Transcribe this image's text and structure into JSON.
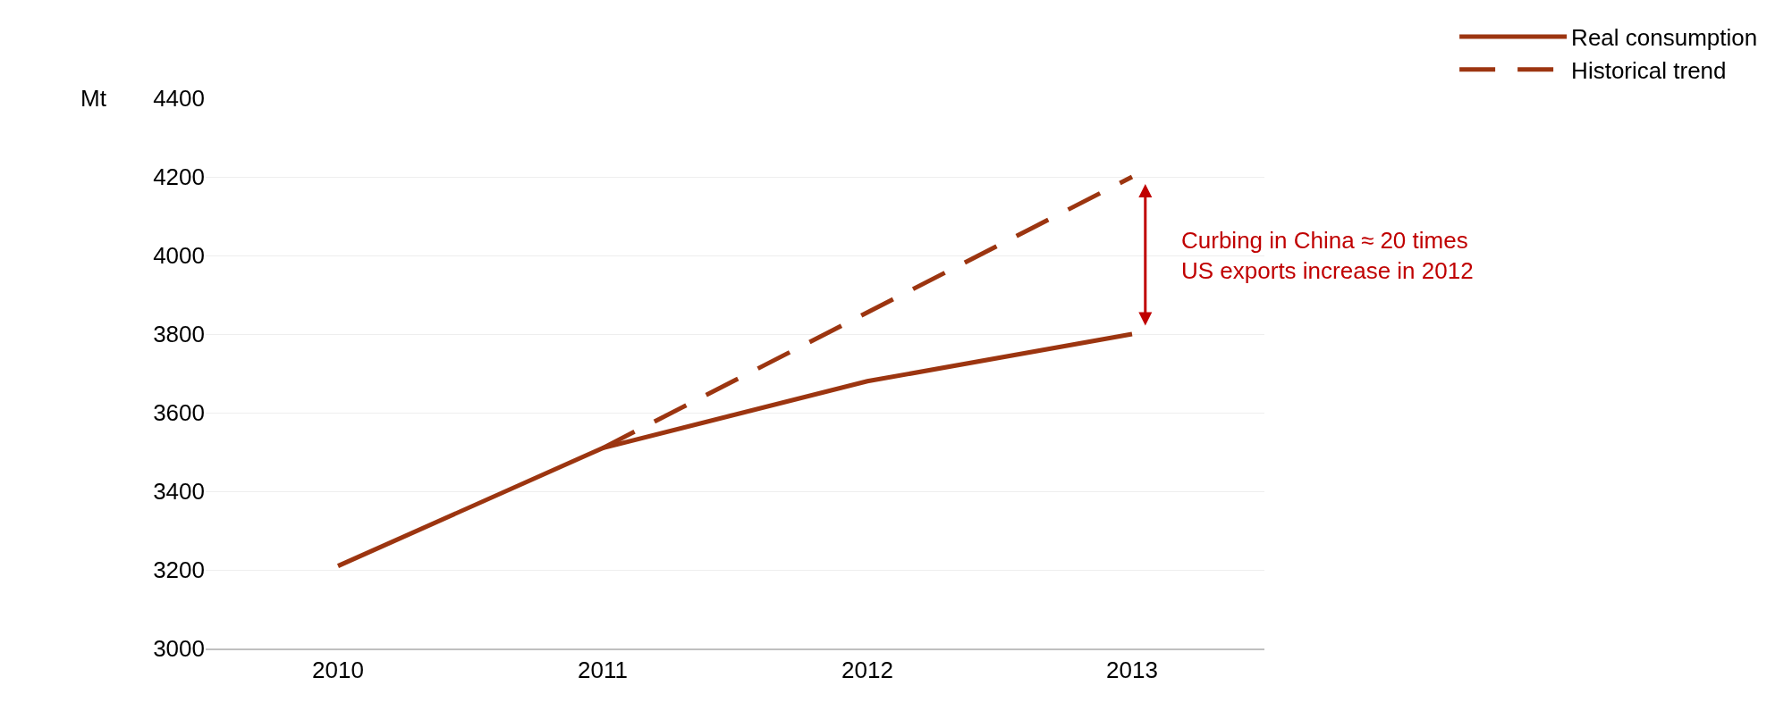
{
  "chart_data": {
    "type": "line",
    "ylabel": "Mt",
    "categories": [
      "2010",
      "2011",
      "2012",
      "2013"
    ],
    "series": [
      {
        "name": "Real consumption",
        "color": "#9c3510",
        "line_style": "solid",
        "values": [
          3210,
          3510,
          3680,
          3800
        ]
      },
      {
        "name": "Historical trend",
        "color": "#9c3510",
        "line_style": "dashed",
        "values": [
          null,
          3510,
          3855,
          4200
        ]
      }
    ],
    "annotations": [
      "Curbing in China ≈ 20 times\nUS exports increase in 2012"
    ],
    "ylim": [
      3000,
      4400
    ],
    "yticks": [
      3000,
      3200,
      3400,
      3600,
      3800,
      4000,
      4200,
      4400
    ],
    "grid": "y",
    "legend": "top right",
    "marker": "none"
  }
}
